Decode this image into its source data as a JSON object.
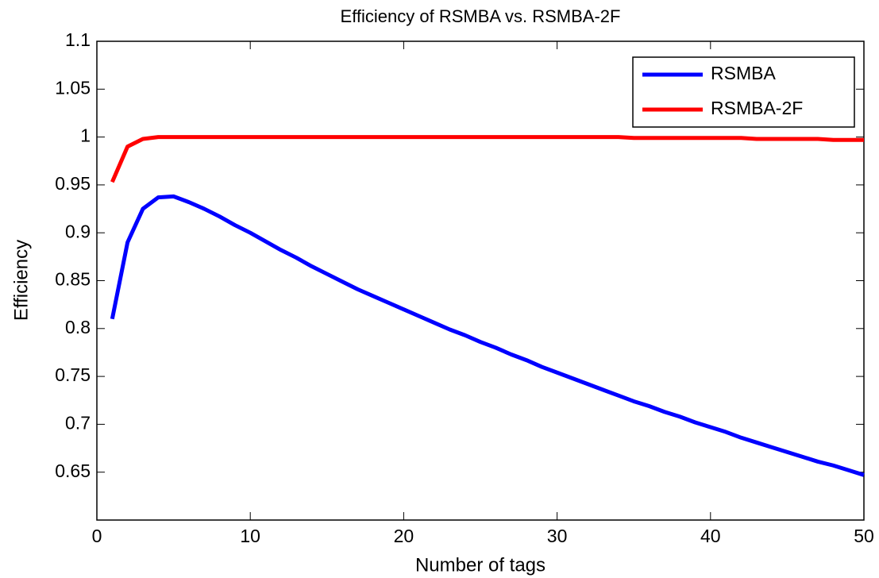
{
  "chart_data": {
    "type": "line",
    "title": "Efficiency of RSMBA vs. RSMBA-2F",
    "xlabel": "Number of tags",
    "ylabel": "Efficiency",
    "x": [
      1,
      2,
      3,
      4,
      5,
      6,
      7,
      8,
      9,
      10,
      11,
      12,
      13,
      14,
      15,
      16,
      17,
      18,
      19,
      20,
      21,
      22,
      23,
      24,
      25,
      26,
      27,
      28,
      29,
      30,
      31,
      32,
      33,
      34,
      35,
      36,
      37,
      38,
      39,
      40,
      41,
      42,
      43,
      44,
      45,
      46,
      47,
      48,
      49,
      50
    ],
    "series": [
      {
        "name": "RSMBA",
        "color": "#0000ff",
        "values": [
          0.81,
          0.89,
          0.925,
          0.937,
          0.938,
          0.932,
          0.925,
          0.917,
          0.908,
          0.9,
          0.891,
          0.882,
          0.874,
          0.865,
          0.857,
          0.849,
          0.841,
          0.834,
          0.827,
          0.82,
          0.813,
          0.806,
          0.799,
          0.793,
          0.786,
          0.78,
          0.773,
          0.767,
          0.76,
          0.754,
          0.748,
          0.742,
          0.736,
          0.73,
          0.724,
          0.719,
          0.713,
          0.708,
          0.702,
          0.697,
          0.692,
          0.686,
          0.681,
          0.676,
          0.671,
          0.666,
          0.661,
          0.657,
          0.652,
          0.647
        ]
      },
      {
        "name": "RSMBA-2F",
        "color": "#ff0000",
        "values": [
          0.953,
          0.99,
          0.998,
          1.0,
          1.0,
          1.0,
          1.0,
          1.0,
          1.0,
          1.0,
          1.0,
          1.0,
          1.0,
          1.0,
          1.0,
          1.0,
          1.0,
          1.0,
          1.0,
          1.0,
          1.0,
          1.0,
          1.0,
          1.0,
          1.0,
          1.0,
          1.0,
          1.0,
          1.0,
          1.0,
          1.0,
          1.0,
          1.0,
          1.0,
          0.999,
          0.999,
          0.999,
          0.999,
          0.999,
          0.999,
          0.999,
          0.999,
          0.998,
          0.998,
          0.998,
          0.998,
          0.998,
          0.997,
          0.997,
          0.997
        ]
      }
    ],
    "xlim": [
      0,
      50
    ],
    "xticks": [
      0,
      10,
      20,
      30,
      40,
      50
    ],
    "ylim": [
      0.6,
      1.1
    ],
    "yticks": [
      0.65,
      0.7,
      0.75,
      0.8,
      0.85,
      0.9,
      0.95,
      1,
      1.05,
      1.1
    ],
    "legend": "upper right"
  }
}
